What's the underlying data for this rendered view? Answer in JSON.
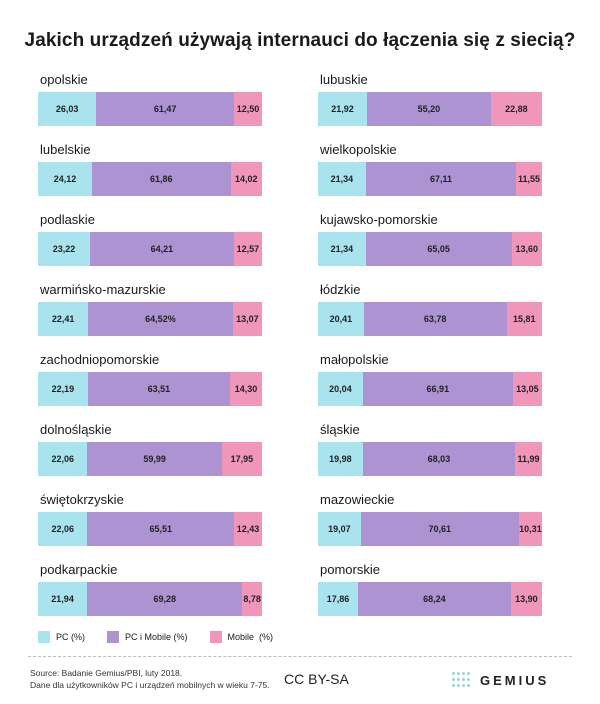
{
  "title": "Jakich urządzeń używają internauci do łączenia się z siecią?",
  "colors": {
    "pc": "#a8e3ee",
    "pc_mobile": "#ad93d2",
    "mobile": "#f096bb"
  },
  "chart_data": {
    "type": "bar",
    "orientation": "horizontal",
    "stacked": true,
    "normalized_to": 100,
    "title": "Jakich urządzeń używają internauci do łączenia się z siecią?",
    "series_names": [
      "PC (%)",
      "PC i Mobile (%)",
      "Mobile (%)"
    ],
    "columns": [
      [
        {
          "name": "opolskie",
          "values": [
            26.03,
            61.47,
            12.5
          ],
          "labels": [
            "26,03",
            "61,47",
            "12,50"
          ]
        },
        {
          "name": "lubelskie",
          "values": [
            24.12,
            61.86,
            14.02
          ],
          "labels": [
            "24,12",
            "61,86",
            "14,02"
          ]
        },
        {
          "name": "podlaskie",
          "values": [
            23.22,
            64.21,
            12.57
          ],
          "labels": [
            "23,22",
            "64,21",
            "12,57"
          ]
        },
        {
          "name": "warmińsko-mazurskie",
          "values": [
            22.41,
            64.52,
            13.07
          ],
          "labels": [
            "22,41",
            "64,52%",
            "13,07"
          ]
        },
        {
          "name": "zachodniopomorskie",
          "values": [
            22.19,
            63.51,
            14.3
          ],
          "labels": [
            "22,19",
            "63,51",
            "14,30"
          ]
        },
        {
          "name": "dolnośląskie",
          "values": [
            22.06,
            59.99,
            17.95
          ],
          "labels": [
            "22,06",
            "59,99",
            "17,95"
          ]
        },
        {
          "name": "świętokrzyskie",
          "values": [
            22.06,
            65.51,
            12.43
          ],
          "labels": [
            "22,06",
            "65,51",
            "12,43"
          ]
        },
        {
          "name": "podkarpackie",
          "values": [
            21.94,
            69.28,
            8.78
          ],
          "labels": [
            "21,94",
            "69,28",
            "8,78"
          ]
        }
      ],
      [
        {
          "name": "lubuskie",
          "values": [
            21.92,
            55.2,
            22.88
          ],
          "labels": [
            "21,92",
            "55,20",
            "22,88"
          ]
        },
        {
          "name": "wielkopolskie",
          "values": [
            21.34,
            67.11,
            11.55
          ],
          "labels": [
            "21,34",
            "67,11",
            "11,55"
          ]
        },
        {
          "name": "kujawsko-pomorskie",
          "values": [
            21.34,
            65.05,
            13.6
          ],
          "labels": [
            "21,34",
            "65,05",
            "13,60"
          ]
        },
        {
          "name": "łódzkie",
          "values": [
            20.41,
            63.78,
            15.81
          ],
          "labels": [
            "20,41",
            "63,78",
            "15,81"
          ]
        },
        {
          "name": "małopolskie",
          "values": [
            20.04,
            66.91,
            13.05
          ],
          "labels": [
            "20,04",
            "66,91",
            "13,05"
          ]
        },
        {
          "name": "śląskie",
          "values": [
            19.98,
            68.03,
            11.99
          ],
          "labels": [
            "19,98",
            "68,03",
            "11,99"
          ]
        },
        {
          "name": "mazowieckie",
          "values": [
            19.07,
            70.61,
            10.31
          ],
          "labels": [
            "19,07",
            "70,61",
            "10,31"
          ]
        },
        {
          "name": "pomorskie",
          "values": [
            17.86,
            68.24,
            13.9
          ],
          "labels": [
            "17,86",
            "68,24",
            "13,90"
          ]
        }
      ]
    ],
    "legend": [
      "PC (%)",
      "PC i Mobile (%)",
      "Mobile  (%)"
    ]
  },
  "footer": {
    "source_line1": "Source: Badanie Gemius/PBI, luty 2018.",
    "source_line2": "Dane dla użytkowników PC i urządzeń mobilnych w wieku 7-75.",
    "license": "CC BY-SA",
    "logo_text": "GEMIUS"
  }
}
